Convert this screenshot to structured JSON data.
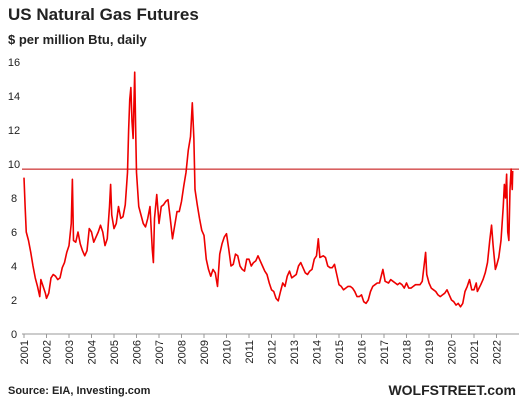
{
  "chart_data": {
    "type": "line",
    "title": "US Natural Gas Futures",
    "subtitle": "$ per million Btu, daily",
    "source": "Source: EIA, Investing.com",
    "brand": "WOLFSTREET.com",
    "color": "#ee0000",
    "x": [
      2001.0,
      2001.05,
      2001.1,
      2001.2,
      2001.3,
      2001.4,
      2001.5,
      2001.6,
      2001.7,
      2001.75,
      2001.85,
      2001.95,
      2002.0,
      2002.1,
      2002.2,
      2002.3,
      2002.4,
      2002.5,
      2002.6,
      2002.7,
      2002.8,
      2002.9,
      2003.0,
      2003.1,
      2003.15,
      2003.2,
      2003.3,
      2003.4,
      2003.5,
      2003.6,
      2003.7,
      2003.8,
      2003.9,
      2004.0,
      2004.1,
      2004.2,
      2004.3,
      2004.4,
      2004.5,
      2004.6,
      2004.7,
      2004.8,
      2004.85,
      2004.9,
      2005.0,
      2005.1,
      2005.2,
      2005.3,
      2005.4,
      2005.5,
      2005.6,
      2005.65,
      2005.7,
      2005.75,
      2005.8,
      2005.85,
      2005.92,
      2005.97,
      2006.0,
      2006.1,
      2006.2,
      2006.3,
      2006.4,
      2006.5,
      2006.6,
      2006.7,
      2006.75,
      2006.8,
      2006.9,
      2007.0,
      2007.1,
      2007.2,
      2007.3,
      2007.4,
      2007.5,
      2007.6,
      2007.7,
      2007.8,
      2007.9,
      2008.0,
      2008.1,
      2008.2,
      2008.3,
      2008.4,
      2008.48,
      2008.55,
      2008.6,
      2008.7,
      2008.8,
      2008.9,
      2009.0,
      2009.1,
      2009.2,
      2009.3,
      2009.4,
      2009.5,
      2009.6,
      2009.7,
      2009.8,
      2009.9,
      2010.0,
      2010.1,
      2010.2,
      2010.3,
      2010.4,
      2010.5,
      2010.6,
      2010.7,
      2010.8,
      2010.9,
      2011.0,
      2011.1,
      2011.2,
      2011.3,
      2011.4,
      2011.5,
      2011.6,
      2011.7,
      2011.8,
      2011.9,
      2012.0,
      2012.1,
      2012.2,
      2012.3,
      2012.4,
      2012.5,
      2012.6,
      2012.7,
      2012.8,
      2012.9,
      2013.0,
      2013.1,
      2013.2,
      2013.3,
      2013.4,
      2013.5,
      2013.6,
      2013.7,
      2013.8,
      2013.9,
      2014.0,
      2014.08,
      2014.15,
      2014.3,
      2014.4,
      2014.5,
      2014.6,
      2014.7,
      2014.8,
      2014.9,
      2015.0,
      2015.1,
      2015.2,
      2015.3,
      2015.4,
      2015.5,
      2015.6,
      2015.7,
      2015.8,
      2015.9,
      2016.0,
      2016.1,
      2016.2,
      2016.3,
      2016.4,
      2016.5,
      2016.6,
      2016.7,
      2016.8,
      2016.95,
      2017.05,
      2017.2,
      2017.3,
      2017.4,
      2017.5,
      2017.6,
      2017.7,
      2017.8,
      2017.9,
      2018.0,
      2018.1,
      2018.2,
      2018.3,
      2018.4,
      2018.5,
      2018.6,
      2018.7,
      2018.85,
      2018.9,
      2019.0,
      2019.1,
      2019.2,
      2019.3,
      2019.4,
      2019.5,
      2019.6,
      2019.7,
      2019.8,
      2019.9,
      2020.0,
      2020.1,
      2020.2,
      2020.3,
      2020.4,
      2020.5,
      2020.6,
      2020.7,
      2020.8,
      2020.9,
      2021.0,
      2021.1,
      2021.15,
      2021.3,
      2021.4,
      2021.5,
      2021.6,
      2021.7,
      2021.78,
      2021.85,
      2021.95,
      2022.0,
      2022.1,
      2022.2,
      2022.3,
      2022.35,
      2022.4,
      2022.45,
      2022.5,
      2022.55,
      2022.6,
      2022.65,
      2022.7,
      2022.72
    ],
    "values": [
      9.2,
      7.5,
      6,
      5.5,
      4.8,
      4,
      3.3,
      2.8,
      2.2,
      3.2,
      2.8,
      2.4,
      2.1,
      2.4,
      3.3,
      3.5,
      3.4,
      3.2,
      3.3,
      3.9,
      4.2,
      4.8,
      5.2,
      6.5,
      9.1,
      5.5,
      5.4,
      6,
      5.3,
      4.9,
      4.6,
      4.9,
      6.2,
      6,
      5.4,
      5.7,
      6,
      6.4,
      6,
      5.2,
      5.6,
      7.5,
      8.8,
      7,
      6.2,
      6.5,
      7.5,
      6.8,
      6.9,
      7.6,
      9.5,
      12,
      13.8,
      14.5,
      12.5,
      11.5,
      15.4,
      11.5,
      9.5,
      7.5,
      7,
      6.5,
      6.3,
      6.8,
      7.5,
      5,
      4.2,
      6.8,
      8.2,
      6.5,
      7.5,
      7.6,
      7.8,
      7.9,
      6.8,
      5.6,
      6.4,
      7.2,
      7.2,
      7.8,
      8.7,
      9.5,
      10.8,
      11.6,
      13.6,
      11.5,
      8.5,
      7.6,
      6.8,
      6.1,
      5.8,
      4.4,
      3.8,
      3.4,
      3.8,
      3.6,
      2.8,
      4.7,
      5.3,
      5.7,
      5.9,
      5,
      4,
      4.1,
      4.7,
      4.6,
      4,
      3.8,
      3.7,
      4.4,
      4.4,
      4,
      4.2,
      4.3,
      4.6,
      4.3,
      4,
      3.7,
      3.5,
      3,
      2.6,
      2.5,
      2.1,
      1.95,
      2.5,
      3,
      2.8,
      3.4,
      3.7,
      3.3,
      3.4,
      3.5,
      4,
      4.2,
      3.9,
      3.6,
      3.5,
      3.7,
      3.8,
      4.4,
      4.6,
      5.6,
      4.5,
      4.6,
      4.5,
      4,
      3.9,
      3.9,
      4.1,
      3.5,
      2.9,
      2.8,
      2.6,
      2.7,
      2.8,
      2.8,
      2.7,
      2.5,
      2.2,
      2.2,
      2.3,
      1.9,
      1.8,
      2,
      2.5,
      2.8,
      2.9,
      3,
      3,
      3.8,
      3.1,
      3,
      3.2,
      3.1,
      3,
      2.9,
      3,
      2.9,
      2.7,
      3,
      2.7,
      2.7,
      2.8,
      2.9,
      2.9,
      2.9,
      3.1,
      4.8,
      3.5,
      3,
      2.7,
      2.6,
      2.5,
      2.3,
      2.2,
      2.3,
      2.4,
      2.6,
      2.3,
      2,
      1.9,
      1.7,
      1.8,
      1.6,
      1.8,
      2.5,
      2.8,
      3.2,
      2.6,
      2.6,
      3,
      2.5,
      2.9,
      3.2,
      3.6,
      4.2,
      5.5,
      6.4,
      5.2,
      3.8,
      4,
      4.5,
      5.5,
      7.5,
      8.8,
      8,
      9.4,
      6,
      5.5,
      8.5,
      9.7,
      8.5,
      9.6
    ],
    "xlim": [
      2001,
      2023
    ],
    "xticks": [
      2001,
      2002,
      2003,
      2004,
      2005,
      2006,
      2007,
      2008,
      2009,
      2010,
      2011,
      2012,
      2013,
      2014,
      2015,
      2016,
      2017,
      2018,
      2019,
      2020,
      2021,
      2022
    ],
    "ylim": [
      0,
      16
    ],
    "yticks": [
      0,
      2,
      4,
      6,
      8,
      10,
      12,
      14,
      16
    ],
    "reference_line": {
      "value": 9.7,
      "color": "#c00000"
    }
  }
}
